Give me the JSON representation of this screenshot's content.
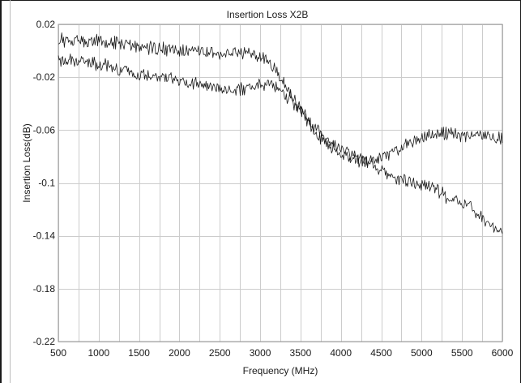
{
  "chart_data": {
    "type": "line",
    "title": "Insertion Loss X2B",
    "xlabel": "Frequency (MHz)",
    "ylabel": "Insertion Loss(dB)",
    "xlim": [
      500,
      6000
    ],
    "ylim": [
      -0.22,
      0.02
    ],
    "x_ticks": [
      500,
      1000,
      1500,
      2000,
      2500,
      3000,
      3500,
      4000,
      4500,
      5000,
      5500,
      6000
    ],
    "x_tick_labels": [
      "500",
      "1000",
      "1500",
      "2000",
      "2500",
      "3000",
      "3500",
      "4000",
      "4500",
      "5000",
      "5500",
      "6000"
    ],
    "y_ticks": [
      0.02,
      -0.02,
      -0.06,
      -0.1,
      -0.14,
      -0.18,
      -0.22
    ],
    "y_tick_labels": [
      "0.02",
      "-0.02",
      "-0.06",
      "-0.1",
      "-0.14",
      "-0.18",
      "-0.22"
    ],
    "x_grid_step": 250,
    "grid": true,
    "legend": "none",
    "line_color": "#1a1a1a",
    "grid_color": "#cccccc",
    "series": [
      {
        "x": [
          500,
          1000,
          1500,
          2000,
          2500,
          2800,
          3000,
          3100,
          3200,
          3300,
          3500,
          3700,
          3900,
          4100,
          4300,
          4500,
          4700,
          4900,
          5100,
          5300,
          5500,
          5700,
          5900,
          6000
        ],
        "values": [
          0.008,
          0.007,
          0.003,
          0.0,
          -0.002,
          -0.002,
          -0.004,
          -0.008,
          -0.015,
          -0.025,
          -0.045,
          -0.063,
          -0.074,
          -0.08,
          -0.084,
          -0.081,
          -0.075,
          -0.068,
          -0.063,
          -0.063,
          -0.064,
          -0.063,
          -0.065,
          -0.066
        ]
      },
      {
        "x": [
          500,
          1000,
          1500,
          2000,
          2500,
          2800,
          3000,
          3100,
          3200,
          3300,
          3500,
          3700,
          3900,
          4100,
          4300,
          4500,
          4700,
          4900,
          5100,
          5300,
          5500,
          5700,
          5800,
          5900,
          6000
        ],
        "values": [
          -0.007,
          -0.01,
          -0.017,
          -0.023,
          -0.028,
          -0.03,
          -0.025,
          -0.024,
          -0.026,
          -0.032,
          -0.045,
          -0.06,
          -0.07,
          -0.077,
          -0.083,
          -0.09,
          -0.097,
          -0.1,
          -0.102,
          -0.11,
          -0.115,
          -0.123,
          -0.128,
          -0.134,
          -0.138
        ]
      }
    ]
  }
}
